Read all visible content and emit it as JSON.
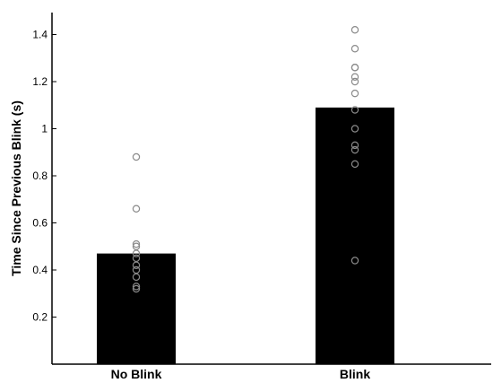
{
  "chart_data": {
    "type": "bar",
    "title": "",
    "xlabel": "",
    "ylabel": "Time Since Previous Blink (s)",
    "categories": [
      "No Blink",
      "Blink"
    ],
    "values": [
      0.47,
      1.09
    ],
    "ylim": [
      0,
      1.5
    ],
    "yticks": [
      0.2,
      0.4,
      0.6,
      0.8,
      1,
      1.2,
      1.4
    ],
    "ytick_labels": [
      "0.2",
      "0.4",
      "0.6",
      "0.8",
      "1",
      "1.2",
      "1.4"
    ],
    "grid": false,
    "bar_color": "#000000",
    "points": [
      {
        "category": "No Blink",
        "values": [
          0.88,
          0.66,
          0.51,
          0.5,
          0.47,
          0.45,
          0.42,
          0.4,
          0.37,
          0.33,
          0.32
        ]
      },
      {
        "category": "Blink",
        "values": [
          1.42,
          1.34,
          1.26,
          1.26,
          1.22,
          1.2,
          1.15,
          1.08,
          1.0,
          0.93,
          0.91,
          0.85,
          0.44
        ]
      }
    ],
    "point_style": "open-circle-gray"
  }
}
